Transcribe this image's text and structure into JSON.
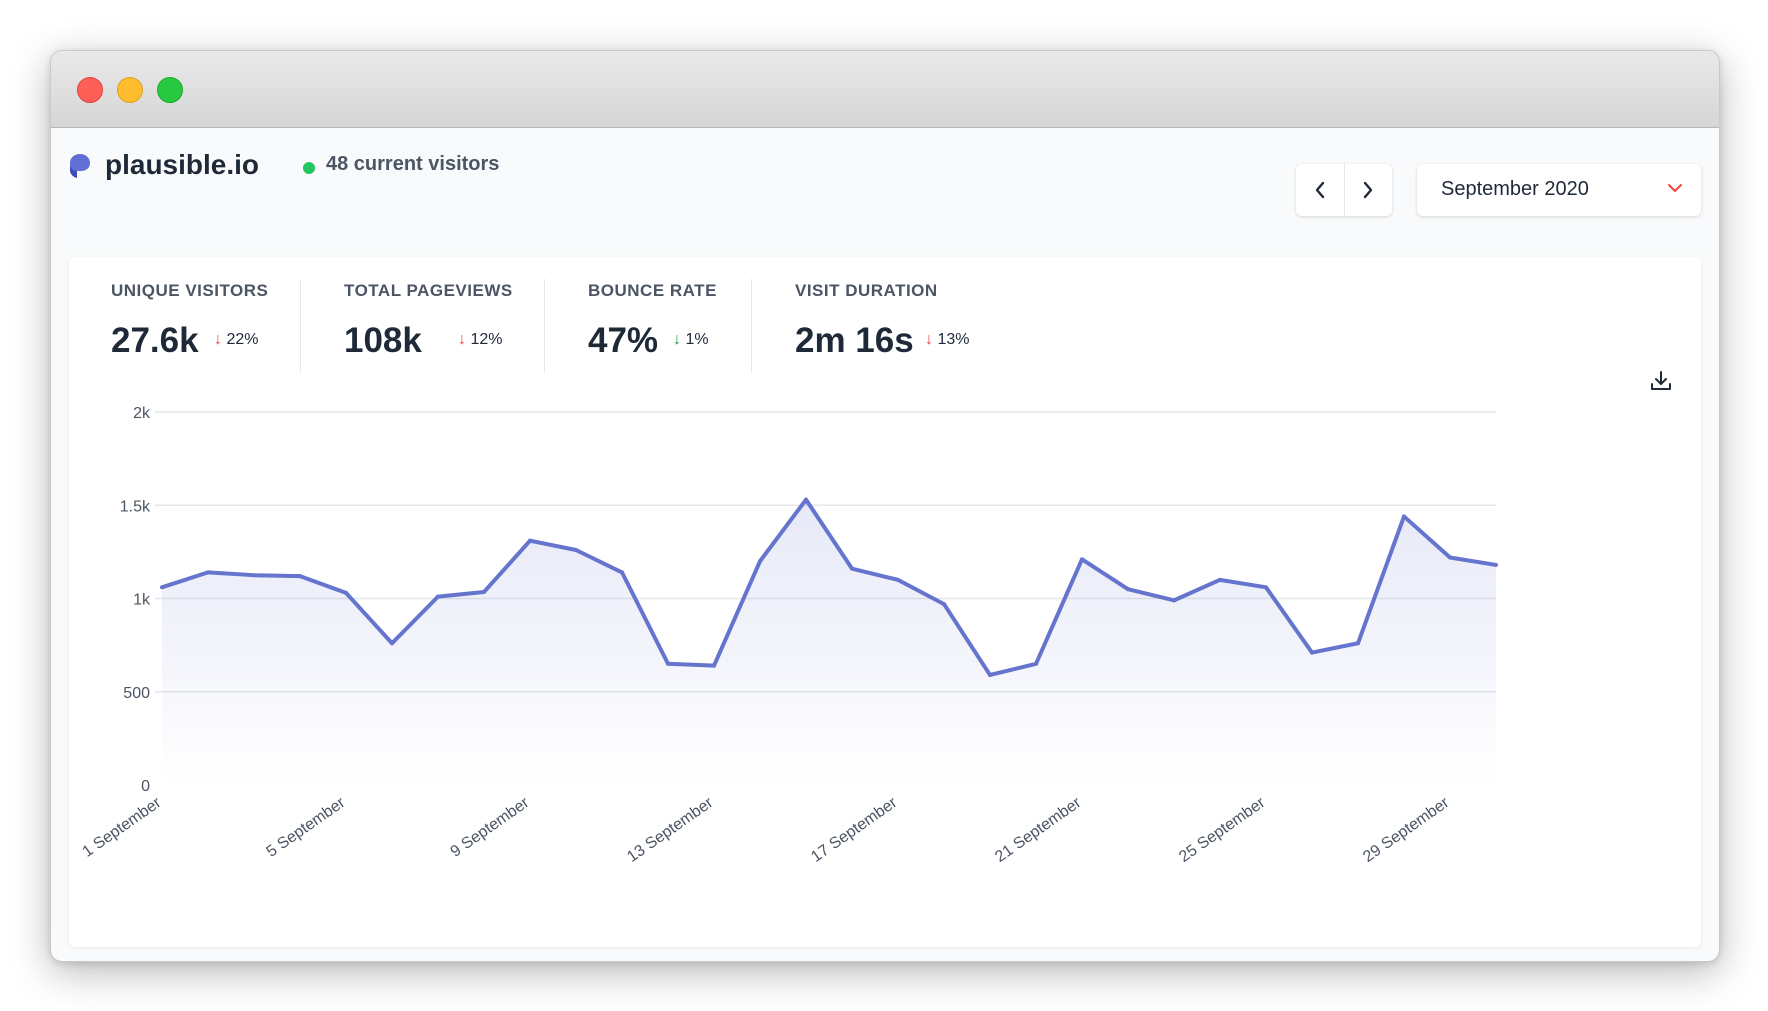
{
  "window": {
    "controls": [
      "close",
      "minimize",
      "maximize"
    ]
  },
  "header": {
    "site_name": "plausible.io",
    "logo_icon": "plausible-logo-icon",
    "live_visitors": "48 current visitors",
    "live_color": "#22c55e",
    "nav": {
      "prev_icon": "chevron-left-icon",
      "next_icon": "chevron-right-icon"
    },
    "period": "September 2020",
    "period_caret_icon": "chevron-down-icon"
  },
  "stats": [
    {
      "label": "UNIQUE VISITORS",
      "value": "27.6k",
      "change": "22%",
      "direction": "down",
      "change_color": "#ef4444"
    },
    {
      "label": "TOTAL PAGEVIEWS",
      "value": "108k",
      "change": "12%",
      "direction": "down",
      "change_color": "#ef4444"
    },
    {
      "label": "BOUNCE RATE",
      "value": "47%",
      "change": "1%",
      "direction": "down",
      "change_color": "#16a34a"
    },
    {
      "label": "VISIT DURATION",
      "value": "2m 16s",
      "change": "13%",
      "direction": "down",
      "change_color": "#ef4444"
    }
  ],
  "download_icon": "download-icon",
  "chart_data": {
    "type": "area",
    "x": [
      "1 September",
      "2 September",
      "3 September",
      "4 September",
      "5 September",
      "6 September",
      "7 September",
      "8 September",
      "9 September",
      "10 September",
      "11 September",
      "12 September",
      "13 September",
      "14 September",
      "15 September",
      "16 September",
      "17 September",
      "18 September",
      "19 September",
      "20 September",
      "21 September",
      "22 September",
      "23 September",
      "24 September",
      "25 September",
      "26 September",
      "27 September",
      "28 September",
      "29 September",
      "30 September"
    ],
    "x_tick_labels": [
      "1 September",
      "5 September",
      "9 September",
      "13 September",
      "17 September",
      "21 September",
      "25 September",
      "29 September"
    ],
    "series": [
      {
        "values": [
          1060,
          1140,
          1125,
          1120,
          1030,
          760,
          1010,
          1035,
          1310,
          1260,
          1140,
          650,
          640,
          1200,
          1530,
          1160,
          1100,
          970,
          590,
          650,
          1210,
          1050,
          990,
          1100,
          1060,
          710,
          760,
          1440,
          1220,
          1180
        ],
        "color": "#6574cd"
      }
    ],
    "y_ticks": [
      0,
      500,
      1000,
      1500,
      2000
    ],
    "y_tick_labels": [
      "0",
      "500",
      "1k",
      "1.5k",
      "2k"
    ],
    "ylim": [
      0,
      2000
    ],
    "grid": true
  }
}
